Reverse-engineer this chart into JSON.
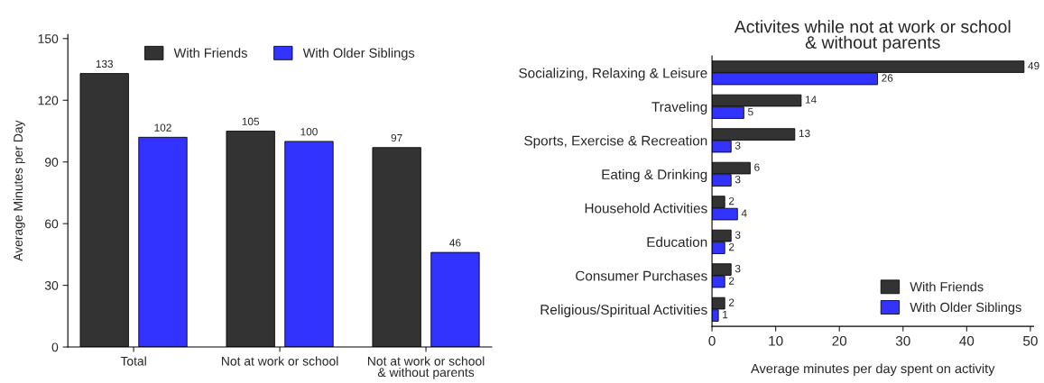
{
  "chart_data": [
    {
      "type": "bar",
      "ylabel": "Average Minutes per Day",
      "categories": [
        "Total",
        "Not at work or school",
        "Not at work or school\n& without parents"
      ],
      "series": [
        {
          "name": "With Friends",
          "color": "#333333",
          "values": [
            133,
            105,
            97
          ]
        },
        {
          "name": "With Older Siblings",
          "color": "#3333ff",
          "values": [
            102,
            100,
            46
          ]
        }
      ],
      "ylim": [
        0,
        152
      ],
      "yticks": [
        0,
        30,
        60,
        90,
        120,
        150
      ],
      "data_labels": true,
      "legend": "top",
      "grid": false
    },
    {
      "type": "bar",
      "orientation": "horizontal",
      "title": "Activites while not at work or school\n& without parents",
      "xlabel": "Average minutes per day spent on activity",
      "categories": [
        "Socializing, Relaxing & Leisure",
        "Traveling",
        "Sports, Exercise & Recreation",
        "Eating & Drinking",
        "Household Activities",
        "Education",
        "Consumer Purchases",
        "Religious/Spiritual Activities"
      ],
      "series": [
        {
          "name": "With Friends",
          "color": "#333333",
          "values": [
            49,
            14,
            13,
            6,
            2,
            3,
            3,
            2
          ]
        },
        {
          "name": "With Older Siblings",
          "color": "#3333ff",
          "values": [
            26,
            5,
            3,
            3,
            4,
            2,
            2,
            1
          ]
        }
      ],
      "xlim": [
        0,
        50.5
      ],
      "xticks": [
        0,
        10,
        20,
        30,
        40,
        50
      ],
      "data_labels": true,
      "legend": "bottom right",
      "grid": false
    }
  ]
}
